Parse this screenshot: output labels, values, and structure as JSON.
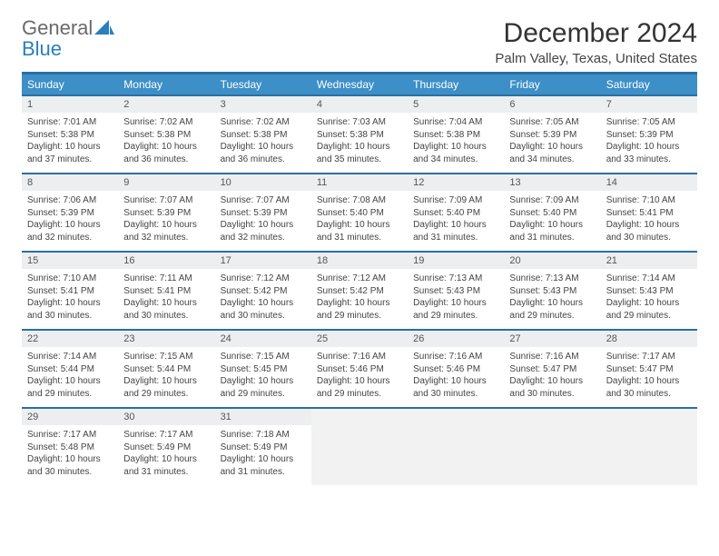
{
  "brand": {
    "general": "General",
    "blue": "Blue"
  },
  "title": "December 2024",
  "location": "Palm Valley, Texas, United States",
  "headers": [
    "Sunday",
    "Monday",
    "Tuesday",
    "Wednesday",
    "Thursday",
    "Friday",
    "Saturday"
  ],
  "header_bg": "#3d8fc7",
  "header_border": "#2a6fa3",
  "daynum_bg": "#eceeef",
  "weeks": [
    [
      {
        "d": "1",
        "sr": "7:01 AM",
        "ss": "5:38 PM",
        "dl": "10 hours and 37 minutes."
      },
      {
        "d": "2",
        "sr": "7:02 AM",
        "ss": "5:38 PM",
        "dl": "10 hours and 36 minutes."
      },
      {
        "d": "3",
        "sr": "7:02 AM",
        "ss": "5:38 PM",
        "dl": "10 hours and 36 minutes."
      },
      {
        "d": "4",
        "sr": "7:03 AM",
        "ss": "5:38 PM",
        "dl": "10 hours and 35 minutes."
      },
      {
        "d": "5",
        "sr": "7:04 AM",
        "ss": "5:38 PM",
        "dl": "10 hours and 34 minutes."
      },
      {
        "d": "6",
        "sr": "7:05 AM",
        "ss": "5:39 PM",
        "dl": "10 hours and 34 minutes."
      },
      {
        "d": "7",
        "sr": "7:05 AM",
        "ss": "5:39 PM",
        "dl": "10 hours and 33 minutes."
      }
    ],
    [
      {
        "d": "8",
        "sr": "7:06 AM",
        "ss": "5:39 PM",
        "dl": "10 hours and 32 minutes."
      },
      {
        "d": "9",
        "sr": "7:07 AM",
        "ss": "5:39 PM",
        "dl": "10 hours and 32 minutes."
      },
      {
        "d": "10",
        "sr": "7:07 AM",
        "ss": "5:39 PM",
        "dl": "10 hours and 32 minutes."
      },
      {
        "d": "11",
        "sr": "7:08 AM",
        "ss": "5:40 PM",
        "dl": "10 hours and 31 minutes."
      },
      {
        "d": "12",
        "sr": "7:09 AM",
        "ss": "5:40 PM",
        "dl": "10 hours and 31 minutes."
      },
      {
        "d": "13",
        "sr": "7:09 AM",
        "ss": "5:40 PM",
        "dl": "10 hours and 31 minutes."
      },
      {
        "d": "14",
        "sr": "7:10 AM",
        "ss": "5:41 PM",
        "dl": "10 hours and 30 minutes."
      }
    ],
    [
      {
        "d": "15",
        "sr": "7:10 AM",
        "ss": "5:41 PM",
        "dl": "10 hours and 30 minutes."
      },
      {
        "d": "16",
        "sr": "7:11 AM",
        "ss": "5:41 PM",
        "dl": "10 hours and 30 minutes."
      },
      {
        "d": "17",
        "sr": "7:12 AM",
        "ss": "5:42 PM",
        "dl": "10 hours and 30 minutes."
      },
      {
        "d": "18",
        "sr": "7:12 AM",
        "ss": "5:42 PM",
        "dl": "10 hours and 29 minutes."
      },
      {
        "d": "19",
        "sr": "7:13 AM",
        "ss": "5:43 PM",
        "dl": "10 hours and 29 minutes."
      },
      {
        "d": "20",
        "sr": "7:13 AM",
        "ss": "5:43 PM",
        "dl": "10 hours and 29 minutes."
      },
      {
        "d": "21",
        "sr": "7:14 AM",
        "ss": "5:43 PM",
        "dl": "10 hours and 29 minutes."
      }
    ],
    [
      {
        "d": "22",
        "sr": "7:14 AM",
        "ss": "5:44 PM",
        "dl": "10 hours and 29 minutes."
      },
      {
        "d": "23",
        "sr": "7:15 AM",
        "ss": "5:44 PM",
        "dl": "10 hours and 29 minutes."
      },
      {
        "d": "24",
        "sr": "7:15 AM",
        "ss": "5:45 PM",
        "dl": "10 hours and 29 minutes."
      },
      {
        "d": "25",
        "sr": "7:16 AM",
        "ss": "5:46 PM",
        "dl": "10 hours and 29 minutes."
      },
      {
        "d": "26",
        "sr": "7:16 AM",
        "ss": "5:46 PM",
        "dl": "10 hours and 30 minutes."
      },
      {
        "d": "27",
        "sr": "7:16 AM",
        "ss": "5:47 PM",
        "dl": "10 hours and 30 minutes."
      },
      {
        "d": "28",
        "sr": "7:17 AM",
        "ss": "5:47 PM",
        "dl": "10 hours and 30 minutes."
      }
    ],
    [
      {
        "d": "29",
        "sr": "7:17 AM",
        "ss": "5:48 PM",
        "dl": "10 hours and 30 minutes."
      },
      {
        "d": "30",
        "sr": "7:17 AM",
        "ss": "5:49 PM",
        "dl": "10 hours and 31 minutes."
      },
      {
        "d": "31",
        "sr": "7:18 AM",
        "ss": "5:49 PM",
        "dl": "10 hours and 31 minutes."
      },
      null,
      null,
      null,
      null
    ]
  ],
  "labels": {
    "sunrise": "Sunrise:",
    "sunset": "Sunset:",
    "daylight": "Daylight:"
  }
}
